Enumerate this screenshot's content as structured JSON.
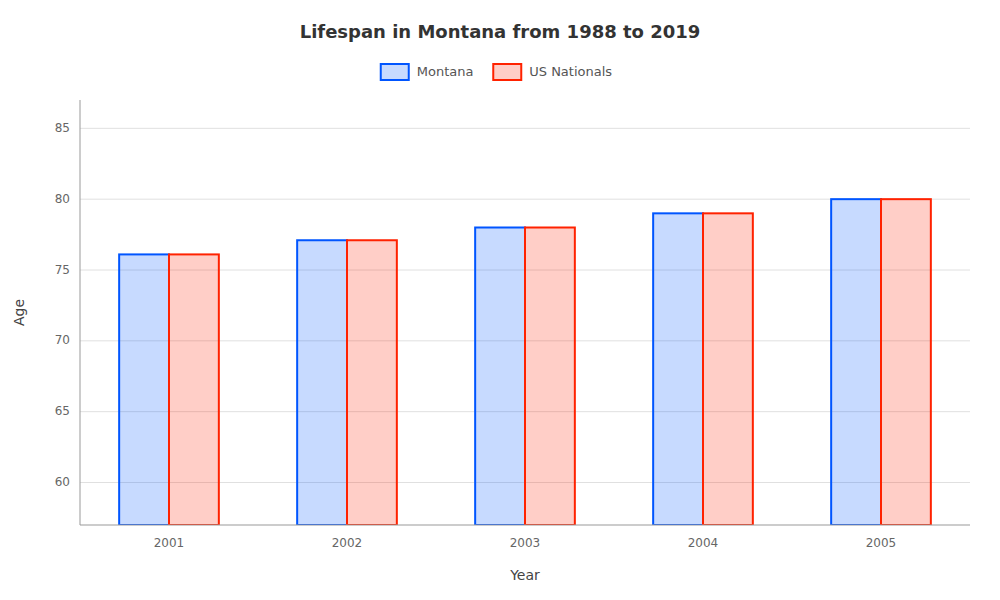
{
  "chart_data": {
    "type": "bar",
    "title": "Lifespan in Montana from 1988 to 2019",
    "x_label": "Year",
    "y_label": "Age",
    "categories": [
      "2001",
      "2002",
      "2003",
      "2004",
      "2005"
    ],
    "series": [
      {
        "name": "Montana",
        "color": "#0055ff",
        "values": [
          76.1,
          77.1,
          78.0,
          79.0,
          80.0
        ]
      },
      {
        "name": "US Nationals",
        "color": "#ff2200",
        "values": [
          76.1,
          77.1,
          78.0,
          79.0,
          80.0
        ]
      }
    ],
    "ylim": [
      57,
      87
    ],
    "yticks": [
      60,
      65,
      70,
      75,
      80,
      85
    ],
    "grid": true,
    "legend": "top"
  }
}
